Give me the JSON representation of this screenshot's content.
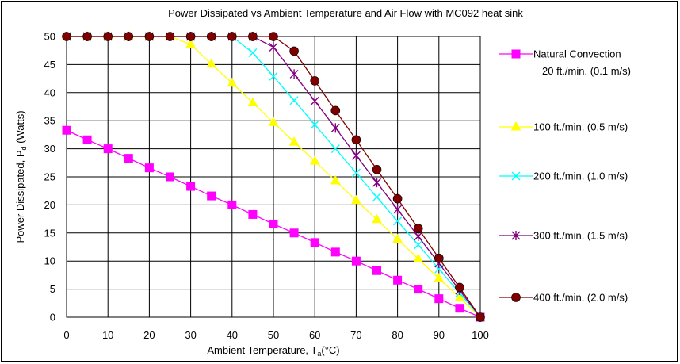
{
  "chart_data": {
    "type": "line",
    "title": "Power Dissipated vs Ambient Temperature and Air Flow with MC092 heat sink",
    "xlabel": {
      "main": "Ambient Temperature, T",
      "sub": "a",
      "tail": "(°C)"
    },
    "ylabel": {
      "main": "Power Dissipated, P",
      "sub": "d",
      "tail": " (Watts)"
    },
    "xlim": [
      0,
      100
    ],
    "ylim": [
      0,
      50
    ],
    "xticks": [
      0,
      10,
      20,
      30,
      40,
      50,
      60,
      70,
      80,
      90,
      100
    ],
    "yticks": [
      0,
      5,
      10,
      15,
      20,
      25,
      30,
      35,
      40,
      45,
      50
    ],
    "grid": true,
    "legend_position": "right",
    "series": [
      {
        "name": "Natural Convection",
        "name_line2": "20 ft./min. (0.1 m/s)",
        "color": "#ff00ff",
        "marker": "square",
        "x": [
          0,
          5,
          10,
          15,
          20,
          25,
          30,
          35,
          40,
          45,
          50,
          55,
          60,
          65,
          70,
          75,
          80,
          85,
          90,
          95,
          100
        ],
        "y": [
          33.3,
          31.6,
          30.0,
          28.3,
          26.6,
          25.0,
          23.3,
          21.6,
          20.0,
          18.3,
          16.6,
          15.0,
          13.3,
          11.6,
          10.0,
          8.3,
          6.6,
          5.0,
          3.3,
          1.6,
          0
        ]
      },
      {
        "name": "100 ft./min. (0.5 m/s)",
        "color": "#ffff00",
        "marker": "triangle",
        "x": [
          0,
          5,
          10,
          15,
          20,
          25,
          30,
          35,
          40,
          45,
          50,
          55,
          60,
          65,
          70,
          75,
          80,
          85,
          90,
          95,
          100
        ],
        "y": [
          50,
          50,
          50,
          50,
          50,
          50,
          48.6,
          45.1,
          41.7,
          38.2,
          34.7,
          31.2,
          27.8,
          24.3,
          20.8,
          17.4,
          13.9,
          10.4,
          6.9,
          3.5,
          0
        ]
      },
      {
        "name": "200 ft./min. (1.0 m/s)",
        "color": "#00ffff",
        "marker": "x",
        "x": [
          0,
          5,
          10,
          15,
          20,
          25,
          30,
          35,
          40,
          45,
          50,
          55,
          60,
          65,
          70,
          75,
          80,
          85,
          90,
          95,
          100
        ],
        "y": [
          50,
          50,
          50,
          50,
          50,
          50,
          50,
          50,
          50,
          47.1,
          42.9,
          38.6,
          34.3,
          30.0,
          25.7,
          21.4,
          17.1,
          12.9,
          8.6,
          4.3,
          0
        ]
      },
      {
        "name": "300 ft./min. (1.5 m/s)",
        "color": "#800080",
        "marker": "star",
        "x": [
          0,
          5,
          10,
          15,
          20,
          25,
          30,
          35,
          40,
          45,
          50,
          55,
          60,
          65,
          70,
          75,
          80,
          85,
          90,
          95,
          100
        ],
        "y": [
          50,
          50,
          50,
          50,
          50,
          50,
          50,
          50,
          50,
          50,
          48.1,
          43.3,
          38.5,
          33.7,
          28.8,
          24.0,
          19.2,
          14.4,
          9.6,
          4.8,
          0
        ]
      },
      {
        "name": "400 ft./min. (2.0 m/s)",
        "color": "#800000",
        "marker": "circle",
        "x": [
          0,
          5,
          10,
          15,
          20,
          25,
          30,
          35,
          40,
          45,
          50,
          55,
          60,
          65,
          70,
          75,
          80,
          85,
          90,
          95,
          100
        ],
        "y": [
          50,
          50,
          50,
          50,
          50,
          50,
          50,
          50,
          50,
          50,
          50,
          47.4,
          42.1,
          36.8,
          31.6,
          26.3,
          21.1,
          15.8,
          10.5,
          5.3,
          0
        ]
      }
    ]
  }
}
